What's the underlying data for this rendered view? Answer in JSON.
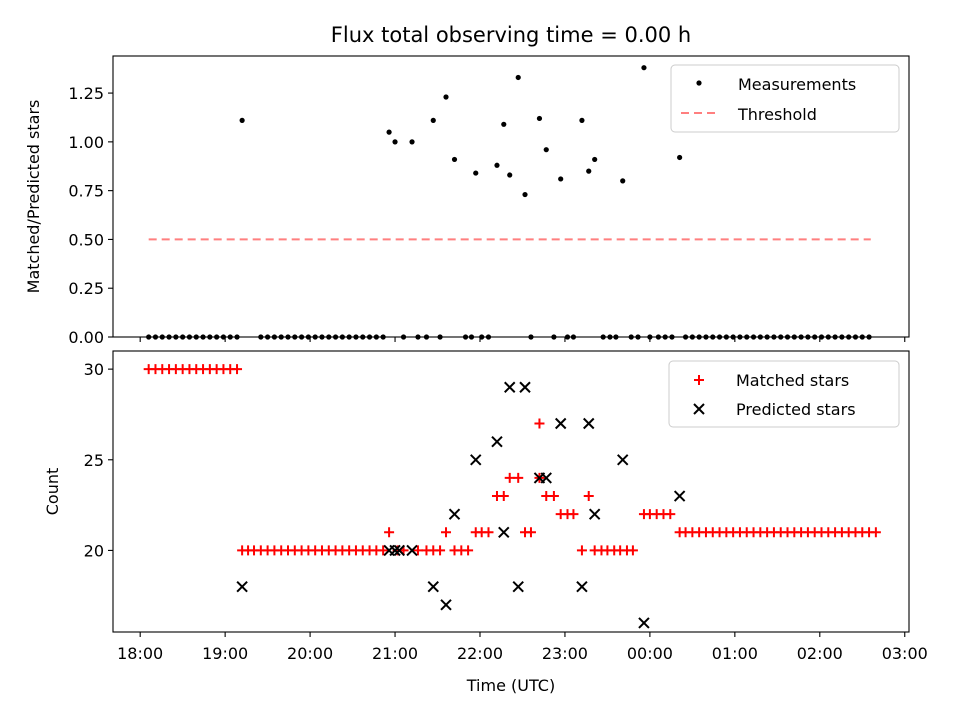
{
  "title": "Flux total observing time = 0.00 h",
  "colors": {
    "measurement": "#000000",
    "threshold": "#ff7f7f",
    "matched": "#ff0000",
    "predicted": "#000000"
  },
  "chart_data": [
    {
      "type": "scatter",
      "ylabel": "Matched/Predicted stars",
      "xlim": [
        17.68,
        27.05
      ],
      "ylim": [
        0,
        1.44
      ],
      "yticks": [
        0,
        0.25,
        0.5,
        0.75,
        1.0,
        1.25
      ],
      "ytick_labels": [
        "0.00",
        "0.25",
        "0.50",
        "0.75",
        "1.00",
        "1.25"
      ],
      "legend": {
        "placement": "top-right",
        "entries": [
          "Measurements",
          "Threshold"
        ]
      },
      "threshold": {
        "y": 0.5,
        "x": [
          18.1,
          26.6
        ]
      },
      "series": [
        {
          "name": "Measurements",
          "x": [
            19.2,
            20.93,
            21.0,
            21.2,
            21.45,
            21.6,
            21.7,
            21.95,
            22.2,
            22.28,
            22.35,
            22.45,
            22.53,
            22.7,
            22.78,
            22.95,
            23.2,
            23.28,
            23.35,
            23.68,
            23.93,
            24.35
          ],
          "y": [
            1.11,
            1.05,
            1.0,
            1.0,
            1.11,
            1.23,
            0.91,
            0.84,
            0.88,
            1.09,
            0.83,
            1.33,
            0.73,
            1.12,
            0.96,
            0.81,
            1.11,
            0.85,
            0.91,
            0.8,
            1.38,
            0.92
          ],
          "zero_x": [
            18.1,
            18.18,
            18.26,
            18.34,
            18.42,
            18.5,
            18.58,
            18.66,
            18.74,
            18.82,
            18.9,
            18.98,
            19.06,
            19.14,
            19.42,
            19.5,
            19.58,
            19.66,
            19.74,
            19.82,
            19.9,
            19.98,
            20.06,
            20.14,
            20.22,
            20.3,
            20.38,
            20.46,
            20.54,
            20.62,
            20.7,
            20.78,
            20.86,
            21.1,
            21.27,
            21.37,
            21.53,
            21.83,
            21.9,
            22.02,
            22.1,
            22.6,
            22.87,
            23.03,
            23.1,
            23.45,
            23.53,
            23.6,
            23.78,
            23.86,
            24.0,
            24.1,
            24.18,
            24.26,
            24.42,
            24.5,
            24.58,
            24.66,
            24.74,
            24.82,
            24.9,
            24.98,
            25.06,
            25.14,
            25.22,
            25.3,
            25.38,
            25.46,
            25.54,
            25.62,
            25.7,
            25.78,
            25.86,
            25.94,
            26.02,
            26.1,
            26.18,
            26.26,
            26.34,
            26.42,
            26.5,
            26.58
          ]
        }
      ]
    },
    {
      "type": "scatter",
      "xlabel": "Time (UTC)",
      "ylabel": "Count",
      "xlim": [
        17.68,
        27.05
      ],
      "ylim": [
        15.5,
        31
      ],
      "yticks": [
        20,
        25,
        30
      ],
      "ytick_labels": [
        "20",
        "25",
        "30"
      ],
      "xticks": [
        18,
        19,
        20,
        21,
        22,
        23,
        24,
        25,
        26,
        27
      ],
      "xtick_labels": [
        "18:00",
        "19:00",
        "20:00",
        "21:00",
        "22:00",
        "23:00",
        "00:00",
        "01:00",
        "02:00",
        "03:00"
      ],
      "legend": {
        "placement": "top-right",
        "entries": [
          "Matched stars",
          "Predicted stars"
        ]
      },
      "series": [
        {
          "name": "Matched stars",
          "groups": [
            {
              "y": 30,
              "x": [
                18.1,
                18.18,
                18.26,
                18.34,
                18.42,
                18.5,
                18.58,
                18.66,
                18.74,
                18.82,
                18.9,
                18.98,
                19.06,
                19.14
              ]
            },
            {
              "y": 20,
              "x": [
                19.2,
                19.27,
                19.34,
                19.42,
                19.5,
                19.58,
                19.66,
                19.74,
                19.82,
                19.9,
                19.98,
                20.06,
                20.14,
                20.22,
                20.3,
                20.38,
                20.46,
                20.54,
                20.62,
                20.7,
                20.78,
                20.86,
                21.03,
                21.1,
                21.27,
                21.37,
                21.45,
                21.53,
                21.7,
                21.78,
                21.86,
                23.2,
                23.35,
                23.43,
                23.5,
                23.58,
                23.65,
                23.73,
                23.8
              ]
            },
            {
              "y": 21,
              "x": [
                20.93,
                21.6,
                21.95,
                22.02,
                22.1,
                22.53,
                22.6,
                24.35,
                24.42,
                24.5,
                24.58,
                24.66,
                24.74,
                24.82,
                24.9,
                24.98,
                25.06,
                25.14,
                25.22,
                25.3,
                25.38,
                25.46,
                25.54,
                25.62,
                25.7,
                25.78,
                25.86,
                25.94,
                26.02,
                26.1,
                26.18,
                26.26,
                26.34,
                26.42,
                26.5,
                26.58,
                26.66
              ]
            },
            {
              "y": 22,
              "x": [
                22.95,
                23.03,
                23.1,
                23.93,
                24.0,
                24.08,
                24.16,
                24.24
              ]
            },
            {
              "y": 23,
              "x": [
                22.2,
                22.28,
                22.78,
                22.87,
                23.28
              ]
            },
            {
              "y": 24,
              "x": [
                22.35,
                22.45,
                22.7
              ]
            },
            {
              "y": 27,
              "x": [
                22.7
              ]
            }
          ]
        },
        {
          "name": "Predicted stars",
          "x": [
            19.2,
            20.93,
            21.0,
            21.05,
            21.2,
            21.45,
            21.6,
            21.7,
            21.95,
            22.2,
            22.28,
            22.35,
            22.45,
            22.53,
            22.7,
            22.78,
            22.95,
            23.2,
            23.28,
            23.35,
            23.68,
            23.93,
            24.35
          ],
          "y": [
            18,
            20,
            20,
            20,
            20,
            18,
            17,
            22,
            25,
            26,
            21,
            29,
            18,
            29,
            24,
            24,
            27,
            18,
            27,
            22,
            25,
            16,
            23
          ]
        }
      ]
    }
  ]
}
